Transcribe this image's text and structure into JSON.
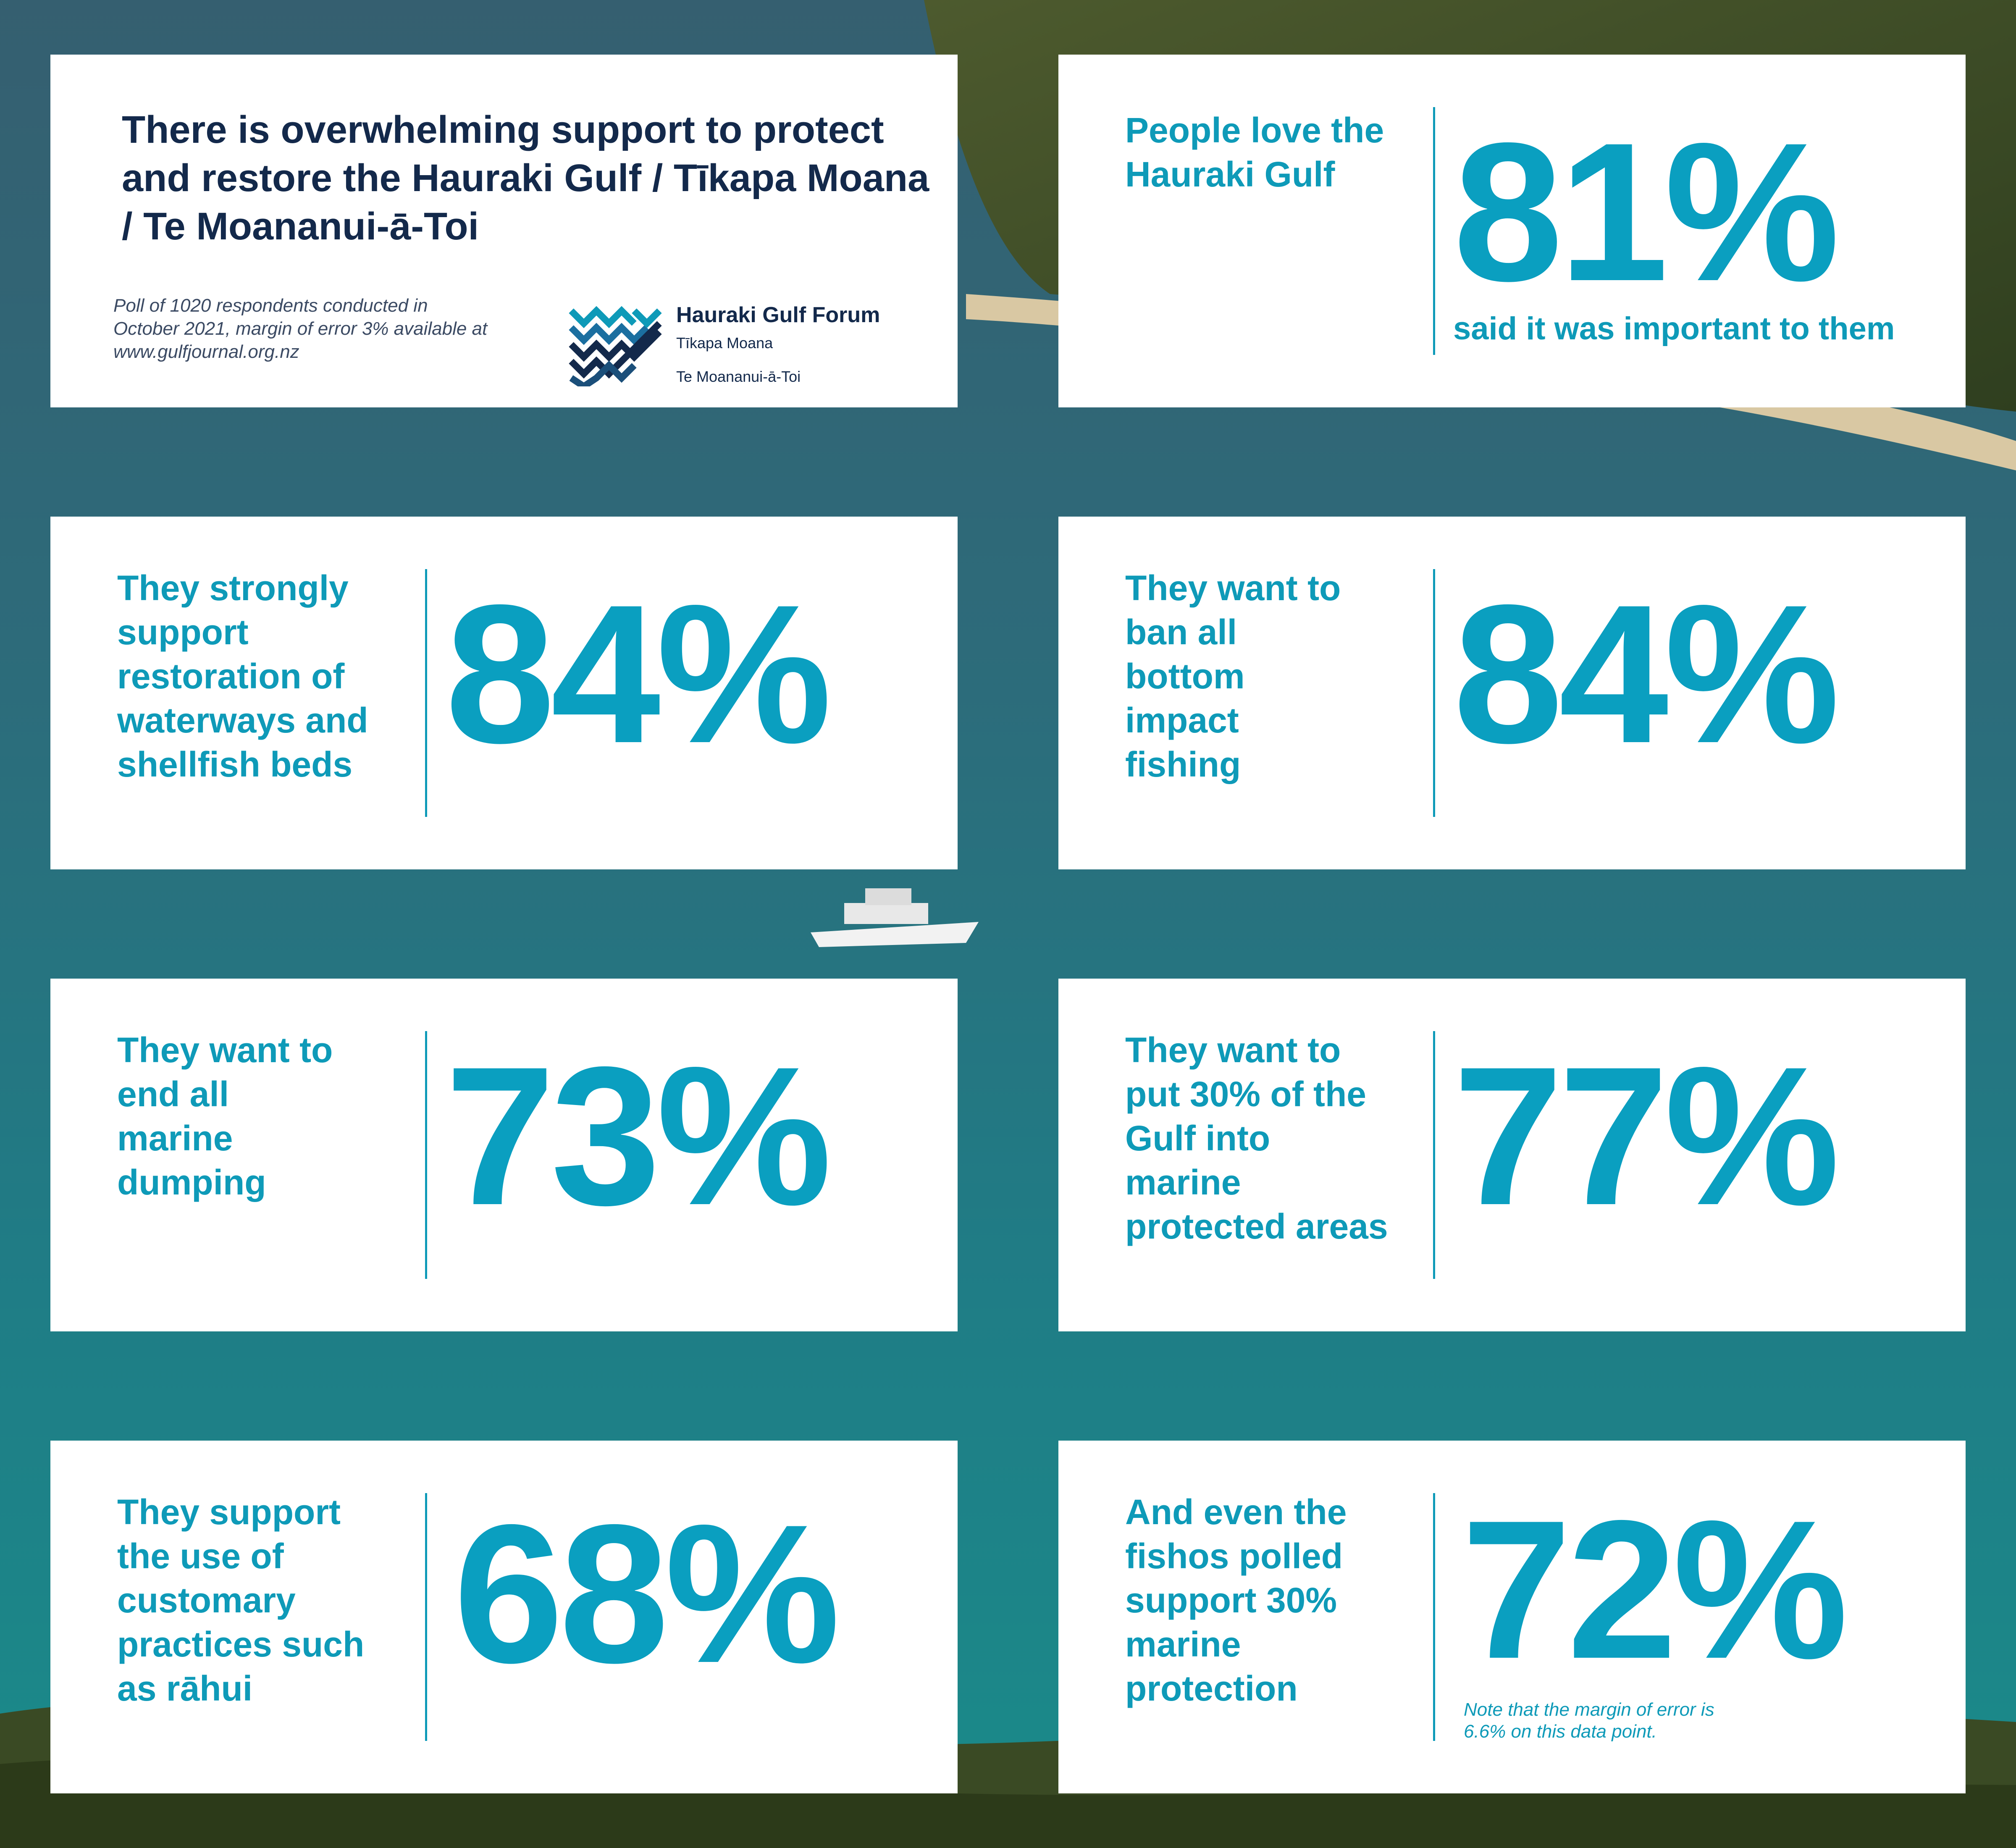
{
  "header": {
    "title": "There is overwhelming support to protect and restore the Hauraki Gulf / Tīkapa Moana / Te Moananui-ā-Toi",
    "poll_note": "Poll of 1020 respondents conducted in October 2021, margin of error 3% available at www.gulfjournal.org.nz"
  },
  "logo": {
    "name": "Hauraki Gulf Forum",
    "sub1": "Tīkapa Moana",
    "sub2": "Te Moananui-ā-Toi"
  },
  "stats": [
    {
      "label": "People love the Hauraki Gulf",
      "value": "81%",
      "caption": "said it was important to them"
    },
    {
      "label": "They strongly support restoration of waterways and shellfish beds",
      "value": "84%"
    },
    {
      "label": "They want to ban all bottom impact fishing",
      "value": "84%"
    },
    {
      "label": "They want to end all marine dumping",
      "value": "73%"
    },
    {
      "label": "They want to put 30% of the Gulf into marine protected areas",
      "value": "77%"
    },
    {
      "label": "They support the use of customary practices such as rāhui",
      "value": "68%"
    },
    {
      "label": "And even the fishos polled support 30% marine protection",
      "value": "72%",
      "note": "Note that the margin of error is 6.6% on this data point."
    }
  ],
  "colors": {
    "accent": "#0e9ab8",
    "title_navy": "#13294b",
    "card_bg": "#ffffff"
  }
}
